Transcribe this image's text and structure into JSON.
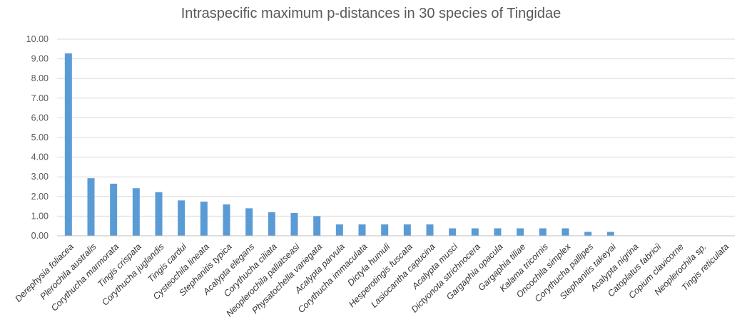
{
  "chart_data": {
    "type": "bar",
    "title": "Intraspecific maximum p-distances in 30 species of Tingidae",
    "xlabel": "",
    "ylabel": "",
    "ylim": [
      0,
      10
    ],
    "yticks": [
      "0.00",
      "1.00",
      "2.00",
      "3.00",
      "4.00",
      "5.00",
      "6.00",
      "7.00",
      "8.00",
      "9.00",
      "10.00"
    ],
    "grid": true,
    "bar_color": "#5b9bd5",
    "categories": [
      "Derephysia foliacea",
      "Plerochila australis",
      "Corythucha marmorata",
      "Tingis crispata",
      "Corythucha juglandis",
      "Tingis cardui",
      "Cysteochila lineata",
      "Stephanitis typica",
      "Acalypta elegans",
      "Corythucha ciliata",
      "Neoplerochila paliatseasi",
      "Physatochella variegata",
      "Acalypta parvula",
      "Corythucha immaculata",
      "Dictyla humuli",
      "Hesperotingis fuscata",
      "Lasiocantha capucina",
      "Acalypta musci",
      "Dictyonota strichnocera",
      "Gargaphia opacula",
      "Gargaphia tiliae",
      "Kalama tricornis",
      "Oncochila simplex",
      "Corythucha pallipes",
      "Stephanitis takeyai",
      "Acalypta nigrina",
      "Catoplatus fabricii",
      "Copium clavicorne",
      "Neoplerochila sp.",
      "Tingis reticulata"
    ],
    "values": [
      9.28,
      2.93,
      2.65,
      2.42,
      2.22,
      1.8,
      1.74,
      1.6,
      1.4,
      1.2,
      1.16,
      1.0,
      0.58,
      0.58,
      0.58,
      0.58,
      0.58,
      0.38,
      0.38,
      0.38,
      0.38,
      0.38,
      0.38,
      0.2,
      0.2,
      0,
      0,
      0,
      0,
      0
    ]
  }
}
